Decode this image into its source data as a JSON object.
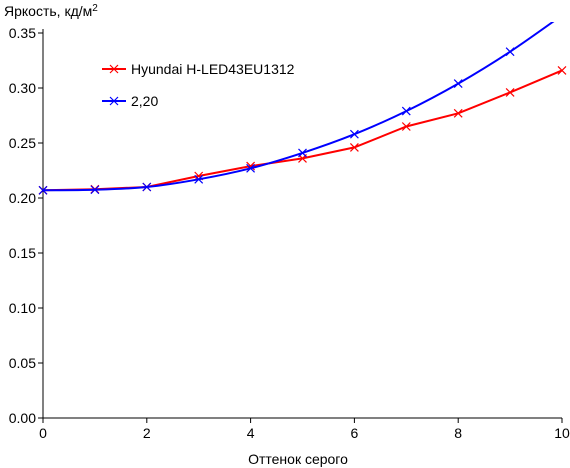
{
  "chart_data": {
    "type": "line",
    "title": "",
    "ylabel": "Яркость, кд/м",
    "ylabel_sup": "2",
    "xlabel": "Оттенок серого",
    "xlim": [
      0,
      10
    ],
    "ylim": [
      0,
      0.35
    ],
    "x_ticks": [
      0,
      2,
      4,
      6,
      8,
      10
    ],
    "x_tick_labels": [
      "0",
      "2",
      "4",
      "6",
      "8",
      "10"
    ],
    "y_ticks": [
      0,
      0.05,
      0.1,
      0.15,
      0.2,
      0.25,
      0.3,
      0.35
    ],
    "y_tick_labels": [
      "0.00",
      "0.05",
      "0.10",
      "0.15",
      "0.20",
      "0.25",
      "0.30",
      "0.35"
    ],
    "grid": false,
    "legend_position": "top-left",
    "x": [
      0,
      1,
      2,
      3,
      4,
      5,
      6,
      7,
      8,
      9,
      10
    ],
    "series": [
      {
        "name": "Hyundai H-LED43EU1312",
        "color": "#ff0000",
        "marker": "x",
        "values": [
          0.207,
          0.208,
          0.21,
          0.22,
          0.229,
          0.236,
          0.246,
          0.265,
          0.277,
          0.296,
          0.316
        ]
      },
      {
        "name": "2,20",
        "color": "#0000ff",
        "marker": "x",
        "smooth": true,
        "values": [
          0.207,
          0.2075,
          0.21,
          0.217,
          0.227,
          0.241,
          0.258,
          0.279,
          0.304,
          0.333,
          0.366
        ]
      }
    ]
  }
}
